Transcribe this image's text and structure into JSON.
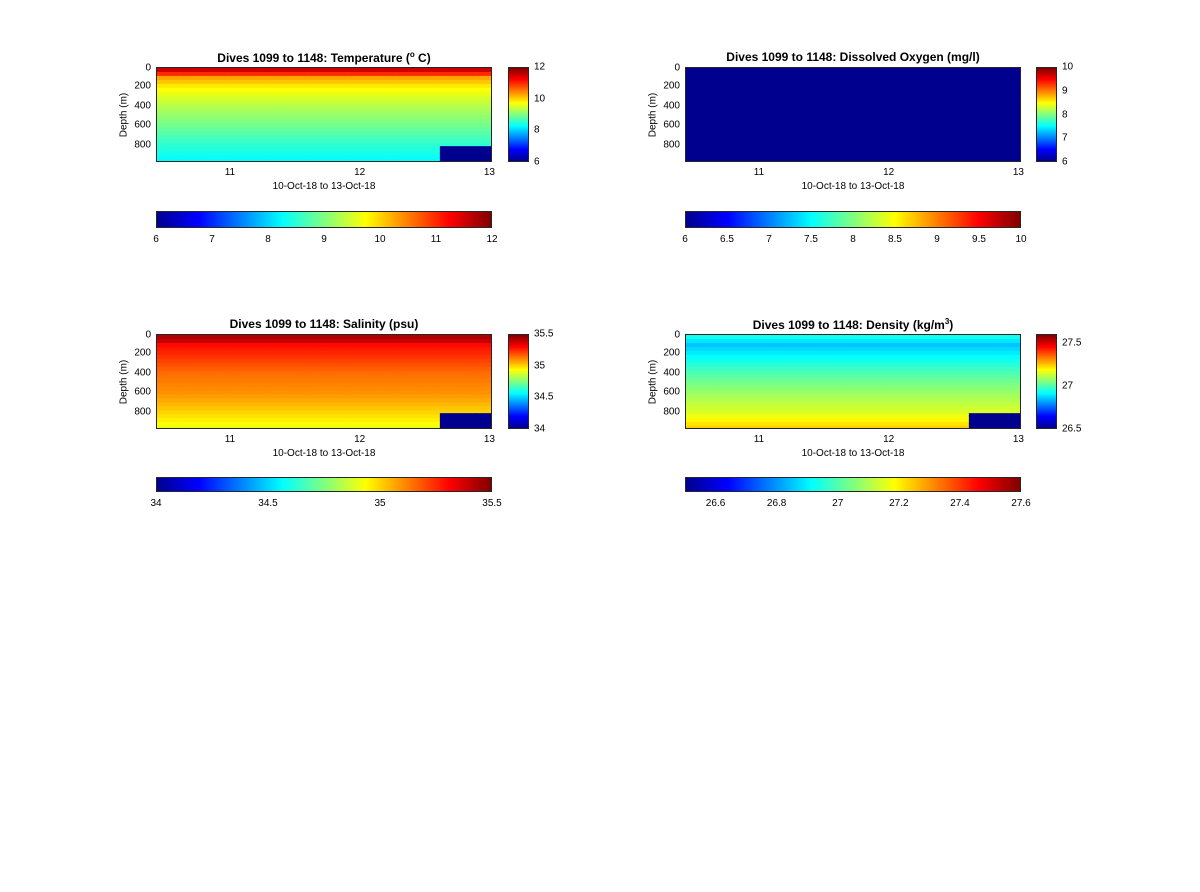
{
  "colormap": [
    "#00008f",
    "#0000ff",
    "#0080ff",
    "#00ffff",
    "#80ff80",
    "#ffff00",
    "#ff8000",
    "#ff0000",
    "#800000"
  ],
  "chart_data": [
    {
      "type": "heatmap",
      "key": "temperature",
      "title_main": "Dives 1099 to 1148: Temperature (",
      "title_sup": "o",
      "title_end": " C)",
      "xlabel": "10-Oct-18 to 13-Oct-18",
      "ylabel": "Depth (m)",
      "x_tick_labels": [
        "11",
        "12",
        "13"
      ],
      "x_ticks": [
        11,
        12,
        13
      ],
      "xlim": [
        10.43,
        13.02
      ],
      "y_tick_labels": [
        "0",
        "200",
        "400",
        "600",
        "800"
      ],
      "y_ticks": [
        0,
        200,
        400,
        600,
        800
      ],
      "ylim": [
        0,
        980
      ],
      "clim": [
        6,
        12
      ],
      "side_colorbar_ticks": [
        6,
        8,
        10,
        12
      ],
      "side_colorbar_tick_labels": [
        "6",
        "8",
        "10",
        "12"
      ],
      "bottom_colorbar_ticks": [
        6,
        7,
        8,
        9,
        10,
        11,
        12
      ],
      "bottom_colorbar_tick_labels": [
        "6",
        "7",
        "8",
        "9",
        "10",
        "11",
        "12"
      ],
      "dives": 50,
      "profile_depths": [
        0,
        50,
        100,
        200,
        400,
        600,
        800,
        980
      ],
      "profile_values": [
        11.8,
        11.2,
        10.3,
        9.8,
        9.3,
        8.9,
        8.5,
        8.2
      ],
      "nodata_value": 6,
      "nodata_from_x": 12.6
    },
    {
      "type": "heatmap",
      "key": "oxygen",
      "title_main": "Dives 1099 to 1148: Dissolved Oxygen (mg/l)",
      "title_sup": "",
      "title_end": "",
      "xlabel": "10-Oct-18 to 13-Oct-18",
      "ylabel": "Depth (m)",
      "x_tick_labels": [
        "11",
        "12",
        "13"
      ],
      "x_ticks": [
        11,
        12,
        13
      ],
      "xlim": [
        10.43,
        13.02
      ],
      "y_tick_labels": [
        "0",
        "200",
        "400",
        "600",
        "800"
      ],
      "y_ticks": [
        0,
        200,
        400,
        600,
        800
      ],
      "ylim": [
        0,
        980
      ],
      "clim": [
        6,
        10
      ],
      "side_colorbar_ticks": [
        6,
        7,
        8,
        9,
        10
      ],
      "side_colorbar_tick_labels": [
        "6",
        "7",
        "8",
        "9",
        "10"
      ],
      "bottom_colorbar_ticks": [
        6,
        6.5,
        7,
        7.5,
        8,
        8.5,
        9,
        9.5,
        10
      ],
      "bottom_colorbar_tick_labels": [
        "6",
        "6.5",
        "7",
        "7.5",
        "8",
        "8.5",
        "9",
        "9.5",
        "10"
      ],
      "dives": 50,
      "profile_depths": [
        0,
        980
      ],
      "profile_values": [
        6,
        6
      ],
      "nodata_value": 6,
      "nodata_from_x": 12.6
    },
    {
      "type": "heatmap",
      "key": "salinity",
      "title_main": "Dives 1099 to 1148: Salinity (psu)",
      "title_sup": "",
      "title_end": "",
      "xlabel": "10-Oct-18 to 13-Oct-18",
      "ylabel": "Depth (m)",
      "x_tick_labels": [
        "11",
        "12",
        "13"
      ],
      "x_ticks": [
        11,
        12,
        13
      ],
      "xlim": [
        10.43,
        13.02
      ],
      "y_tick_labels": [
        "0",
        "200",
        "400",
        "600",
        "800"
      ],
      "y_ticks": [
        0,
        200,
        400,
        600,
        800
      ],
      "ylim": [
        0,
        980
      ],
      "clim": [
        34,
        35.5
      ],
      "side_colorbar_ticks": [
        34,
        34.5,
        35,
        35.5
      ],
      "side_colorbar_tick_labels": [
        "34",
        "34.5",
        "35",
        "35.5"
      ],
      "bottom_colorbar_ticks": [
        34,
        34.5,
        35,
        35.5
      ],
      "bottom_colorbar_tick_labels": [
        "34",
        "34.5",
        "35",
        "35.5"
      ],
      "dives": 50,
      "profile_depths": [
        0,
        60,
        100,
        200,
        400,
        600,
        800,
        980
      ],
      "profile_values": [
        35.45,
        35.4,
        35.3,
        35.25,
        35.15,
        35.1,
        35.0,
        34.9
      ],
      "nodata_value": 34,
      "nodata_from_x": 12.6
    },
    {
      "type": "heatmap",
      "key": "density",
      "title_main": "Dives 1099 to 1148: Density (kg/m",
      "title_sup": "3",
      "title_end": ")",
      "xlabel": "10-Oct-18 to 13-Oct-18",
      "ylabel": "Depth (m)",
      "x_tick_labels": [
        "11",
        "12",
        "13"
      ],
      "x_ticks": [
        11,
        12,
        13
      ],
      "xlim": [
        10.43,
        13.02
      ],
      "y_tick_labels": [
        "0",
        "200",
        "400",
        "600",
        "800"
      ],
      "y_ticks": [
        0,
        200,
        400,
        600,
        800
      ],
      "ylim": [
        0,
        980
      ],
      "clim": [
        26.5,
        27.6
      ],
      "side_colorbar_ticks": [
        26.5,
        27,
        27.5
      ],
      "side_colorbar_tick_labels": [
        "26.5",
        "27",
        "27.5"
      ],
      "bottom_colorbar_ticks": [
        26.6,
        26.8,
        27,
        27.2,
        27.4,
        27.6
      ],
      "bottom_colorbar_tick_labels": [
        "26.6",
        "26.8",
        "27",
        "27.2",
        "27.4",
        "27.6"
      ],
      "dives": 50,
      "profile_depths": [
        0,
        100,
        200,
        400,
        600,
        800,
        980
      ],
      "profile_values": [
        26.95,
        26.85,
        26.9,
        27.0,
        27.08,
        27.15,
        27.25
      ],
      "nodata_value": 26.5,
      "nodata_from_x": 12.6
    }
  ]
}
